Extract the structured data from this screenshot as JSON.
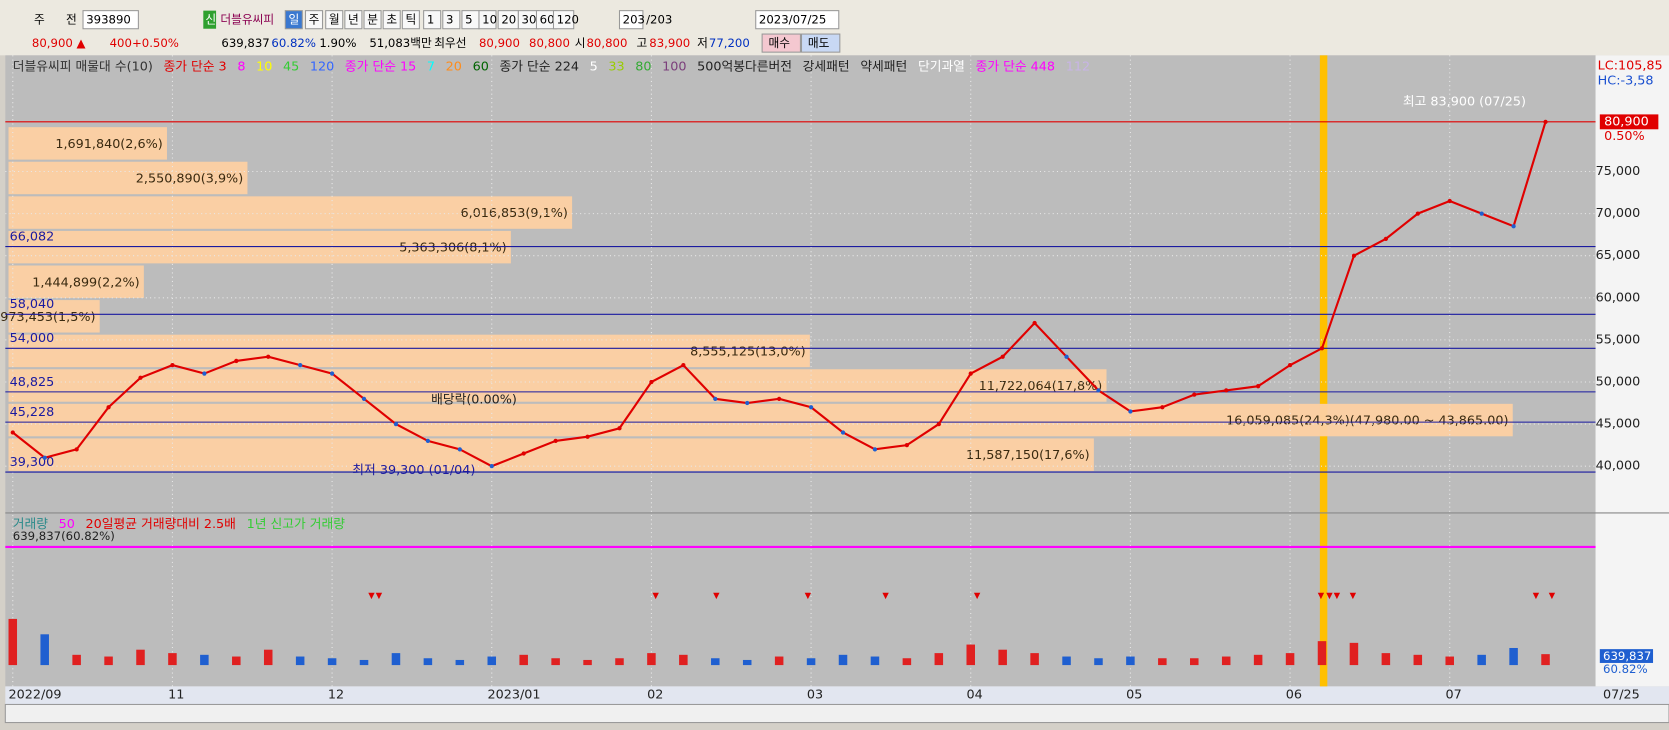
{
  "toolbar": {
    "row1": [
      "주",
      "전",
      "393890",
      "신",
      "더블유씨피",
      "일",
      "주",
      "월",
      "년",
      "분",
      "초",
      "틱",
      "1",
      "3",
      "5",
      "10",
      "20",
      "30",
      "60",
      "120",
      "203",
      "/203",
      "2023/07/25"
    ],
    "row2": [
      {
        "text": "80,900 ▲",
        "color": "#e00000"
      },
      {
        "text": "400",
        "color": "#e00000"
      },
      {
        "text": "+0.50%",
        "color": "#e00000"
      },
      {
        "text": "639,837",
        "color": "#000000"
      },
      {
        "text": "60.82%",
        "color": "#0030c0"
      },
      {
        "text": "1.90%",
        "color": "#000000"
      },
      {
        "text": "51,083백만",
        "color": "#000000"
      },
      {
        "text": "최우선",
        "color": "#000000"
      },
      {
        "text": "80,900",
        "color": "#e00000"
      },
      {
        "text": "80,800",
        "color": "#e00000"
      },
      {
        "text": "시",
        "color": "#000000"
      },
      {
        "text": "80,800",
        "color": "#e00000"
      },
      {
        "text": "고",
        "color": "#000000"
      },
      {
        "text": "83,900",
        "color": "#e00000"
      },
      {
        "text": "저",
        "color": "#000000"
      },
      {
        "text": "77,200",
        "color": "#0030c0"
      },
      {
        "text": "매수",
        "color": "#000000"
      },
      {
        "text": "매도",
        "color": "#000000"
      }
    ]
  },
  "chart_data": [
    {
      "type": "line",
      "legend": [
        {
          "text": "더블유씨피 매물대 수(10)",
          "color": "#333333"
        },
        {
          "text": "종가 단순 3",
          "color": "#e00000"
        },
        {
          "text": "8",
          "color": "#ff00ff"
        },
        {
          "text": "10",
          "color": "#ffff00"
        },
        {
          "text": "45",
          "color": "#33cc33"
        },
        {
          "text": "120",
          "color": "#3366ff"
        },
        {
          "text": "종가 단순 15",
          "color": "#ff00ff"
        },
        {
          "text": "7",
          "color": "#00ffff"
        },
        {
          "text": "20",
          "color": "#ff8c1a"
        },
        {
          "text": "60",
          "color": "#006400"
        },
        {
          "text": "종가 단순 224",
          "color": "#222222"
        },
        {
          "text": "5",
          "color": "#ffffff"
        },
        {
          "text": "33",
          "color": "#99cc00"
        },
        {
          "text": "80",
          "color": "#33aa33"
        },
        {
          "text": "100",
          "color": "#7b3f7b"
        },
        {
          "text": "500억봉다른버전",
          "color": "#222222"
        },
        {
          "text": "강세패턴",
          "color": "#222222"
        },
        {
          "text": "약세패턴",
          "color": "#222222"
        },
        {
          "text": "단기과열",
          "color": "#ffffff"
        },
        {
          "text": "종가 단순 448",
          "color": "#ff00ff"
        },
        {
          "text": "112",
          "color": "#c8b4e6"
        }
      ],
      "categories": [
        "2022/09",
        null,
        null,
        null,
        null,
        "11",
        null,
        null,
        null,
        null,
        "12",
        null,
        null,
        null,
        null,
        "2023/01",
        null,
        null,
        null,
        null,
        "02",
        null,
        null,
        null,
        null,
        "03",
        null,
        null,
        null,
        null,
        "04",
        null,
        null,
        null,
        null,
        "05",
        null,
        null,
        null,
        null,
        "06",
        null,
        null,
        null,
        null,
        "07",
        null,
        null,
        null
      ],
      "series": [
        {
          "color": "#e00000",
          "values": [
            44000,
            41000,
            42000,
            47000,
            50500,
            52000,
            51000,
            52500,
            53000,
            52000,
            51000,
            48000,
            45000,
            43000,
            42000,
            40000,
            41500,
            43000,
            43500,
            44500,
            50000,
            52000,
            48000,
            47500,
            48000,
            47000,
            44000,
            42000,
            42500,
            45000,
            51000,
            53000,
            57000,
            53000,
            49000,
            46500,
            47000,
            48500,
            49000,
            49500,
            52000,
            54000,
            65000,
            67000,
            70000,
            71500,
            70000,
            68500,
            80900
          ]
        }
      ],
      "ylim": [
        34700,
        88800
      ],
      "yticks": [
        {
          "value": 75000,
          "label": "75,000"
        },
        {
          "value": 70000,
          "label": "70,000"
        },
        {
          "value": 65000,
          "label": "65,000"
        },
        {
          "value": 60000,
          "label": "60,000"
        },
        {
          "value": 55000,
          "label": "55,000"
        },
        {
          "value": 50000,
          "label": "50,000"
        },
        {
          "value": 45000,
          "label": "45,000"
        },
        {
          "value": 40000,
          "label": "40,000"
        }
      ],
      "grid": true,
      "levels": [
        {
          "value": 80900,
          "label": "80,900",
          "color": "#e00000"
        },
        {
          "value": 66082,
          "label": "66,082",
          "color": "#1a1aa0"
        },
        {
          "value": 58040,
          "label": "58,040",
          "color": "#1a1aa0"
        },
        {
          "value": 54000,
          "label": "54,000",
          "color": "#1a1aa0"
        },
        {
          "value": 48825,
          "label": "48,825",
          "color": "#1a1aa0"
        },
        {
          "value": 45228,
          "label": "45,228",
          "color": "#1a1aa0"
        },
        {
          "value": 39300,
          "label": "39,300",
          "color": "#1a1aa0"
        }
      ],
      "profile": [
        {
          "value": 1691840,
          "label": "1,691,840(2,6%)"
        },
        {
          "value": 2550890,
          "label": "2,550,890(3,9%)"
        },
        {
          "value": 6016853,
          "label": "6,016,853(9,1%)"
        },
        {
          "value": 5363306,
          "label": "5,363,306(8,1%)"
        },
        {
          "value": 1444899,
          "label": "1,444,899(2,2%)"
        },
        {
          "value": 973453,
          "label": "973,453(1,5%)"
        },
        {
          "value": 8555125,
          "label": "8,555,125(13,0%)"
        },
        {
          "value": 11722064,
          "label": "11,722,064(17,8%)"
        },
        {
          "value": 16059085,
          "label": "16,059,085(24,3%)(47,980.00 ~ 43,865.00)"
        },
        {
          "value": 11587150,
          "label": "11,587,150(17,6%)"
        }
      ],
      "annotations": {
        "high": "최고 83,900 (07/25)",
        "low": "최저 39,300 (01/04)",
        "dividend": "배당락(0.00%)"
      },
      "right_labels": {
        "lc": "LC:105,85",
        "hc": "HC:-3,58",
        "price": "80,900",
        "change": "0.50%"
      }
    },
    {
      "type": "bar",
      "legend": [
        {
          "text": "거래량",
          "color": "#2a8a8a"
        },
        {
          "text": "50",
          "color": "#ff00ff"
        },
        {
          "text": "20일평균 거래량대비 2.5배",
          "color": "#e00000"
        },
        {
          "text": "1년 신고가 거래량",
          "color": "#33cc33"
        }
      ],
      "subtitle": "639,837(60.82%)",
      "values": [
        2700000,
        1800000,
        600000,
        500000,
        900000,
        700000,
        600000,
        500000,
        900000,
        500000,
        400000,
        300000,
        700000,
        400000,
        300000,
        500000,
        600000,
        400000,
        300000,
        400000,
        700000,
        600000,
        400000,
        300000,
        500000,
        400000,
        600000,
        500000,
        400000,
        700000,
        1200000,
        900000,
        700000,
        500000,
        400000,
        500000,
        400000,
        400000,
        500000,
        600000,
        700000,
        1400000,
        1300000,
        700000,
        600000,
        500000,
        600000,
        1000000,
        639837
      ],
      "colors": {
        "up": "#e02020",
        "down": "#1f5fd0"
      },
      "ylim": [
        0,
        2800000
      ],
      "right_labels": {
        "volume": "639,837",
        "ratio": "60.82%"
      },
      "end_date": "07/25"
    }
  ]
}
